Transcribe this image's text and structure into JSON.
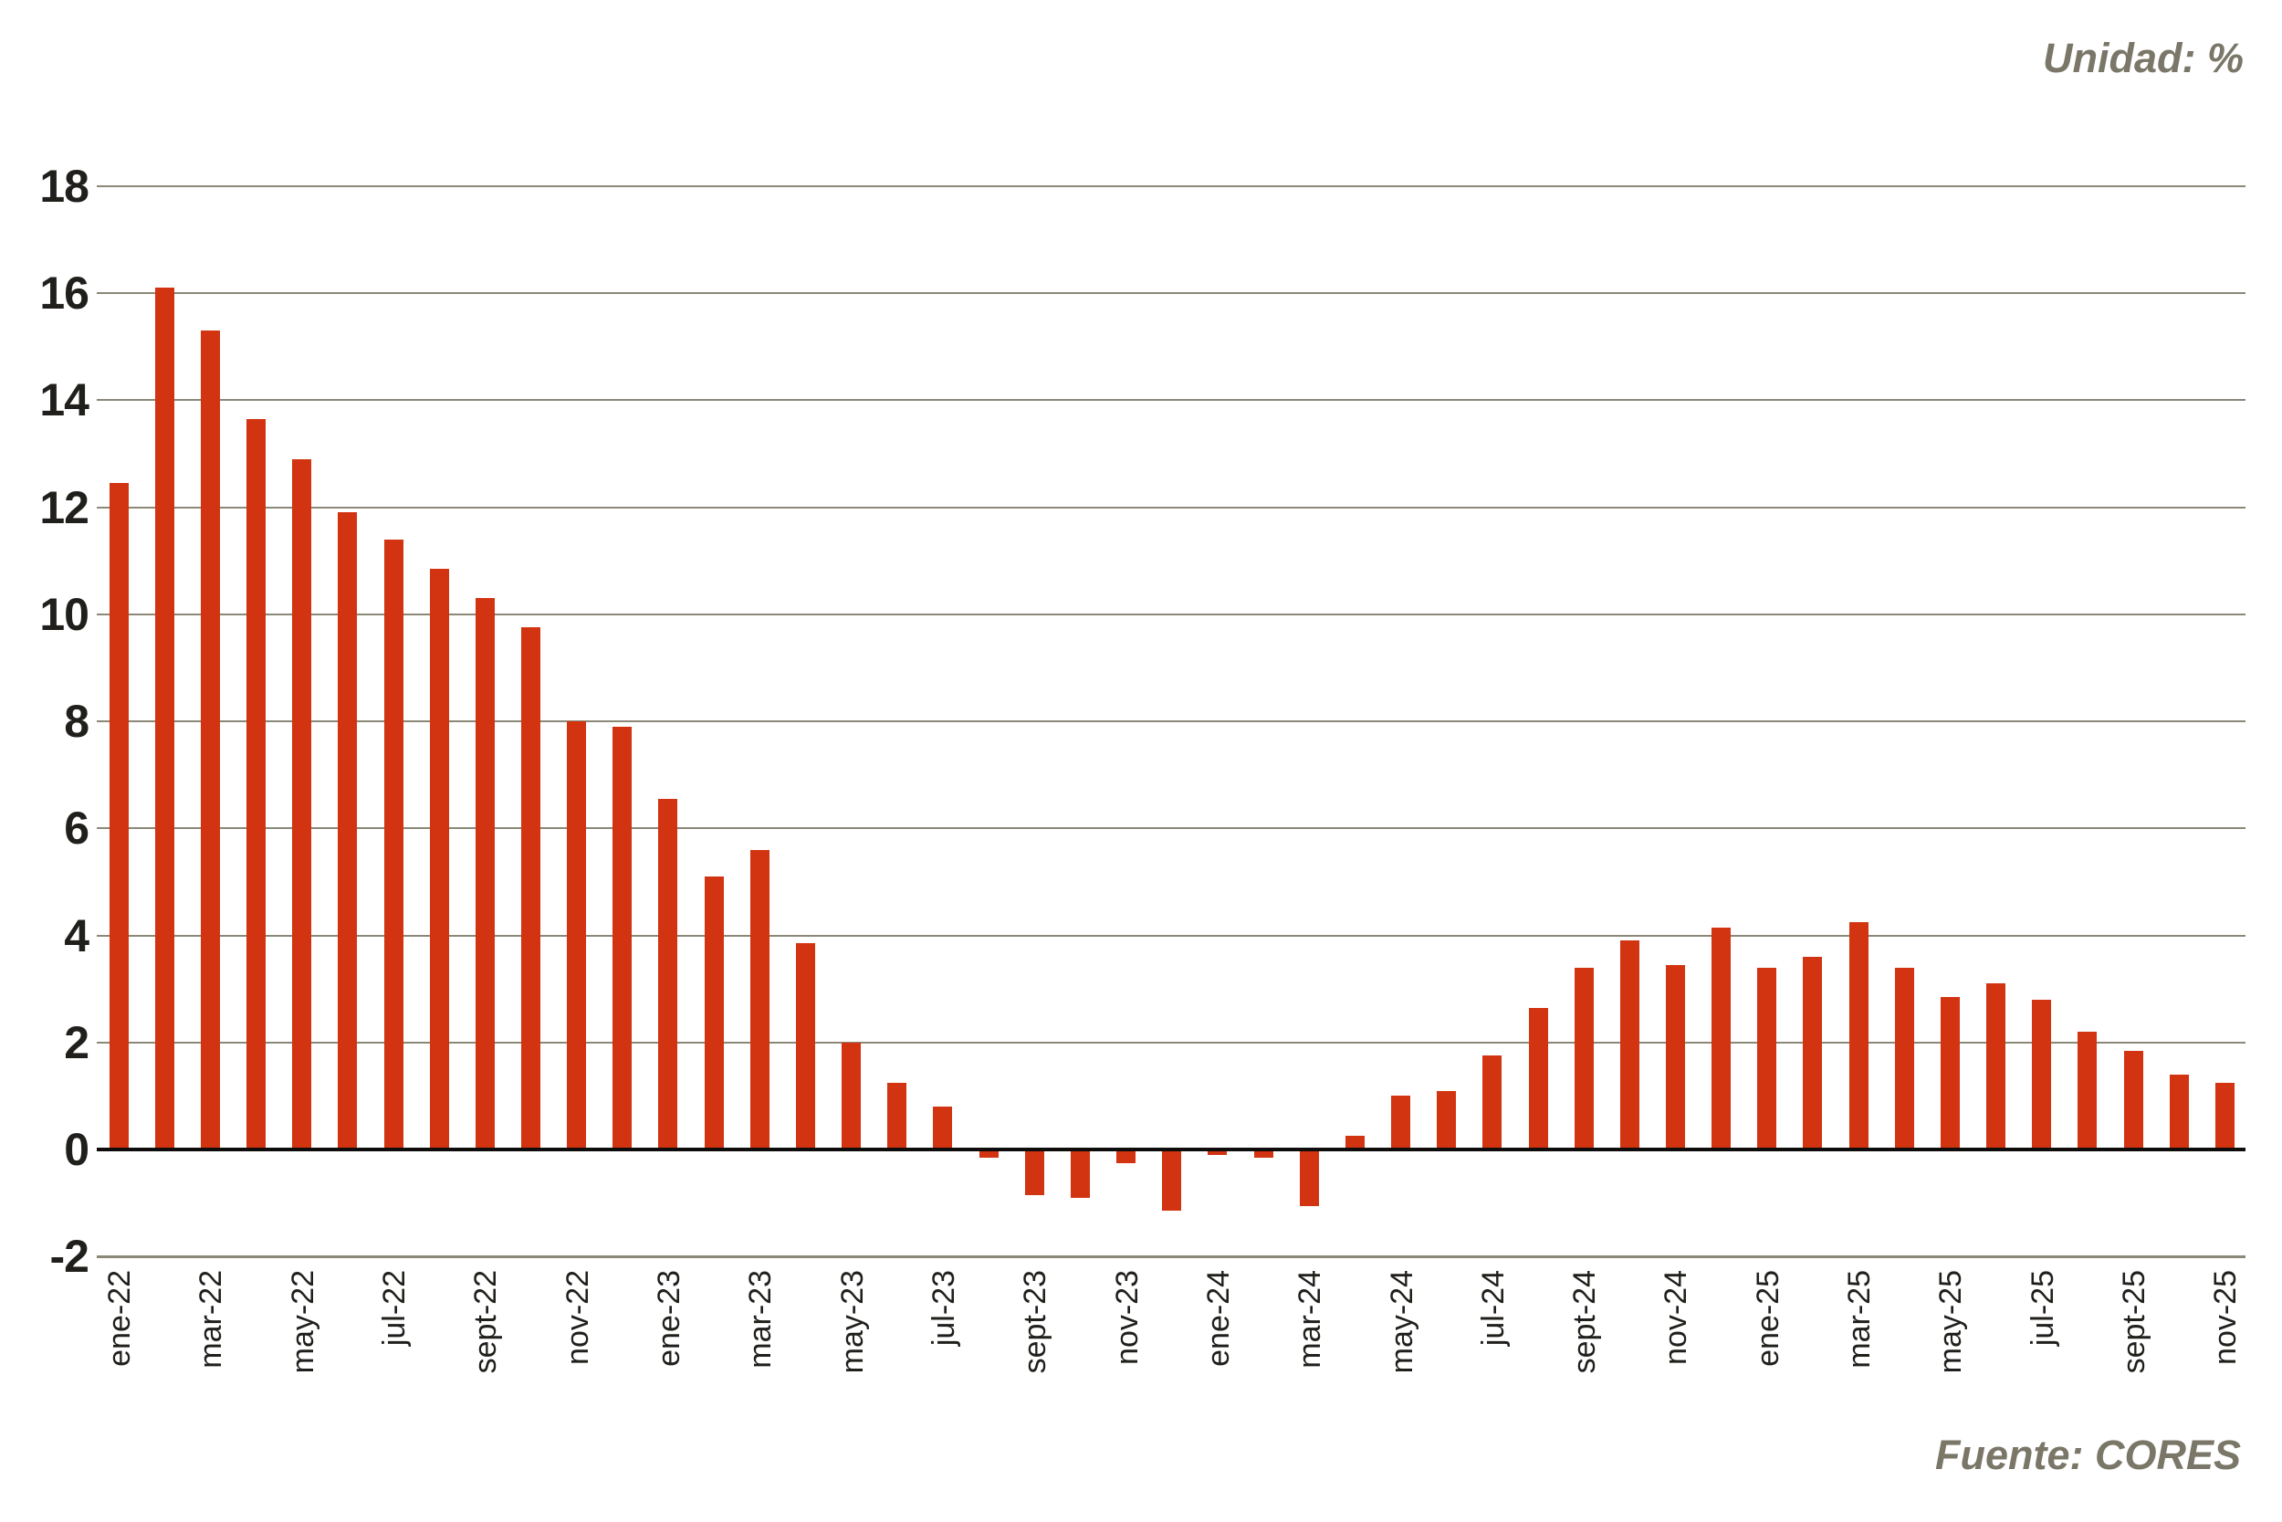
{
  "chart_data": {
    "type": "bar",
    "title": "",
    "unit_label": "Unidad: %",
    "source_label": "Fuente: CORES",
    "xlabel": "",
    "ylabel": "",
    "ylim": [
      -2,
      18
    ],
    "grid": true,
    "legend": "none",
    "bar_color": "#d23310",
    "gridline_color": "#8b8878",
    "zero_line_color": "#0e0d0b",
    "axis_text_color": "#201f1b",
    "caption_color": "#7a7768",
    "y_ticks": [
      "18",
      "16",
      "14",
      "12",
      "10",
      "8",
      "6",
      "4",
      "2",
      "0",
      "-2"
    ],
    "x_tick_labels": [
      "ene-22",
      "mar-22",
      "may-22",
      "jul-22",
      "sept-22",
      "nov-22",
      "ene-23",
      "mar-23",
      "may-23",
      "jul-23",
      "sept-23",
      "nov-23",
      "ene-24",
      "mar-24",
      "may-24",
      "jul-24",
      "sept-24",
      "nov-24",
      "ene-25",
      "mar-25",
      "may-25",
      "jul-25",
      "sept-25",
      "nov-25"
    ],
    "categories": [
      "ene-22",
      "feb-22",
      "mar-22",
      "abr-22",
      "may-22",
      "jun-22",
      "jul-22",
      "ago-22",
      "sept-22",
      "oct-22",
      "nov-22",
      "dic-22",
      "ene-23",
      "feb-23",
      "mar-23",
      "abr-23",
      "may-23",
      "jun-23",
      "jul-23",
      "ago-23",
      "sept-23",
      "oct-23",
      "nov-23",
      "dic-23",
      "ene-24",
      "feb-24",
      "mar-24",
      "abr-24",
      "may-24",
      "jun-24",
      "jul-24",
      "ago-24",
      "sept-24",
      "oct-24",
      "nov-24",
      "dic-24",
      "ene-25",
      "feb-25",
      "mar-25",
      "abr-25",
      "may-25",
      "jun-25",
      "jul-25",
      "ago-25",
      "sept-25",
      "oct-25",
      "nov-25"
    ],
    "values": [
      12.45,
      16.1,
      15.3,
      13.65,
      12.9,
      11.9,
      11.4,
      10.85,
      10.3,
      9.75,
      8.0,
      7.9,
      6.55,
      5.1,
      5.6,
      3.85,
      2.0,
      1.25,
      0.8,
      -0.15,
      -0.85,
      -0.9,
      -0.25,
      -1.15,
      -0.1,
      -0.15,
      -1.05,
      0.25,
      1.0,
      1.1,
      1.75,
      2.65,
      3.4,
      3.9,
      3.45,
      4.15,
      3.4,
      3.6,
      4.25,
      3.4,
      2.85,
      3.1,
      2.8,
      2.2,
      1.85,
      1.4,
      1.25
    ]
  }
}
